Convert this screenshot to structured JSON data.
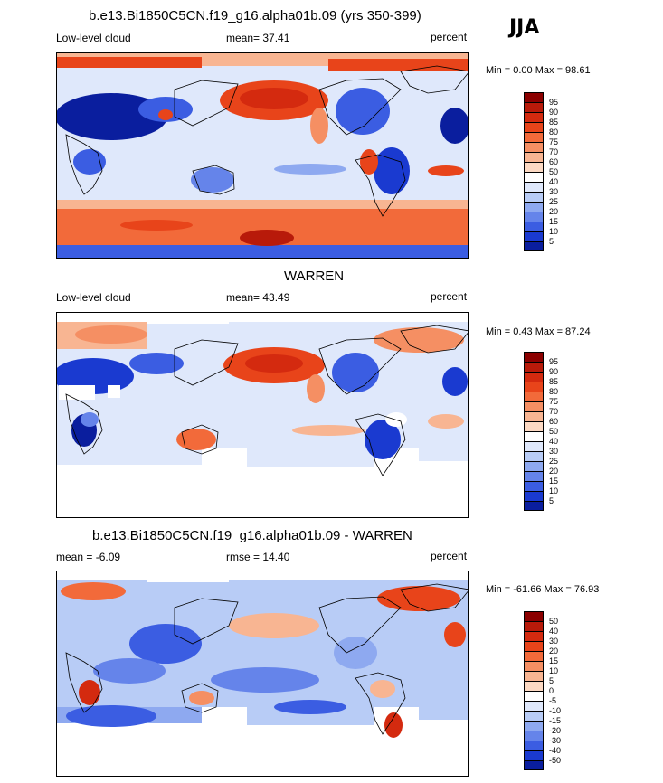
{
  "season": "JJA",
  "panels": [
    {
      "id": "model",
      "title": "b.e13.Bi1850C5CN.f19_g16.alpha01b.09 (yrs 350-399)",
      "left_label": "Low-level cloud",
      "center_label": "mean=  37.41",
      "right_label": "percent",
      "minmax": "Min =    0.00 Max =  98.61",
      "levels": [
        "95",
        "90",
        "85",
        "80",
        "75",
        "70",
        "60",
        "50",
        "40",
        "30",
        "25",
        "20",
        "15",
        "10",
        "5"
      ],
      "colors": [
        "#8b0000",
        "#b81a0a",
        "#d42a0f",
        "#e8441a",
        "#f26a3a",
        "#f58f63",
        "#f8b592",
        "#fcd9c3",
        "#ffffff",
        "#dfe8fb",
        "#b8ccf6",
        "#8ea9f0",
        "#6584ea",
        "#3b5de2",
        "#1a3ad0",
        "#0a1e9e"
      ]
    },
    {
      "id": "obs",
      "title": "WARREN",
      "left_label": "Low-level cloud",
      "center_label": "mean=  43.49",
      "right_label": "percent",
      "minmax": "Min =   0.43 Max =  87.24",
      "levels": [
        "95",
        "90",
        "85",
        "80",
        "75",
        "70",
        "60",
        "50",
        "40",
        "30",
        "25",
        "20",
        "15",
        "10",
        "5"
      ],
      "colors": [
        "#8b0000",
        "#b81a0a",
        "#d42a0f",
        "#e8441a",
        "#f26a3a",
        "#f58f63",
        "#f8b592",
        "#fcd9c3",
        "#ffffff",
        "#dfe8fb",
        "#b8ccf6",
        "#8ea9f0",
        "#6584ea",
        "#3b5de2",
        "#1a3ad0",
        "#0a1e9e"
      ]
    },
    {
      "id": "diff",
      "title": "b.e13.Bi1850C5CN.f19_g16.alpha01b.09 - WARREN",
      "left_label": "mean =  -6.09",
      "center_label": "rmse =  14.40",
      "right_label": "percent",
      "minmax": "Min = -61.66 Max =  76.93",
      "levels": [
        "50",
        "40",
        "30",
        "20",
        "15",
        "10",
        "5",
        "0",
        "-5",
        "-10",
        "-15",
        "-20",
        "-30",
        "-40",
        "-50"
      ],
      "colors": [
        "#8b0000",
        "#b81a0a",
        "#d42a0f",
        "#e8441a",
        "#f26a3a",
        "#f58f63",
        "#f8b592",
        "#fcd9c3",
        "#ffffff",
        "#dfe8fb",
        "#b8ccf6",
        "#8ea9f0",
        "#6584ea",
        "#3b5de2",
        "#1a3ad0",
        "#0a1e9e"
      ]
    }
  ]
}
